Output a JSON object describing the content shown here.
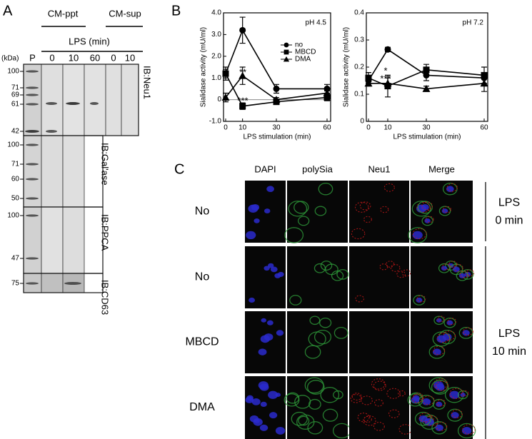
{
  "panel_labels": [
    "A",
    "B",
    "C"
  ],
  "blot": {
    "groups": [
      "CM-ppt",
      "CM-sup"
    ],
    "lps_label": "LPS (min)",
    "kda_label": "(kDa)",
    "lanes": [
      "P",
      "0",
      "10",
      "60",
      "0",
      "10"
    ],
    "sections": [
      {
        "label": "IB:Neu1",
        "markers": [
          100,
          71,
          69,
          61,
          42
        ]
      },
      {
        "label": "IB:Gal'ase",
        "markers": [
          100,
          71,
          60,
          50
        ]
      },
      {
        "label": "IB:PPCA",
        "markers": [
          100,
          47
        ]
      },
      {
        "label": "IB:CD63",
        "markers": [
          75
        ]
      }
    ]
  },
  "chart_data": [
    {
      "type": "line",
      "note": "pH 4.5",
      "x_label": "LPS stimulation (min)",
      "y_label": "Sialidase activity (mU/ml)",
      "x": [
        0,
        10,
        30,
        60
      ],
      "xlim": [
        0,
        60
      ],
      "xticks": [
        0,
        10,
        30,
        60
      ],
      "ylim": [
        -1,
        4
      ],
      "yticks": [
        {
          "value": -1,
          "label": "-1.0"
        },
        0,
        {
          "value": 1,
          "label": "1.0"
        },
        {
          "value": 2,
          "label": "2.0"
        },
        {
          "value": 3,
          "label": "3.0"
        },
        {
          "value": 4,
          "label": "4.0"
        }
      ],
      "zero_line": true,
      "legend": "upper right",
      "series": [
        {
          "name": "no",
          "color": "#000000",
          "marker": "circle",
          "values": [
            1.2,
            3.2,
            0.5,
            0.5
          ],
          "errors": [
            0.3,
            0.6,
            0.2,
            0.2
          ]
        },
        {
          "name": "MBCD",
          "color": "#000000",
          "marker": "square",
          "values": [
            1.2,
            -0.3,
            -0.1,
            0.1
          ],
          "errors": [
            0.2,
            0.15,
            0.1,
            0.15
          ]
        },
        {
          "name": "DMA",
          "color": "#000000",
          "marker": "triangle",
          "values": [
            0.1,
            1.1,
            0.0,
            0.3
          ],
          "errors": [
            0.2,
            0.4,
            0.1,
            0.1
          ]
        }
      ],
      "annotations": [
        "**",
        "***"
      ]
    },
    {
      "type": "line",
      "note": "pH 7.2",
      "x_label": "LPS stimulation (min)",
      "y_label": "Sialidase activity (mU/ml)",
      "x": [
        0,
        10,
        30,
        60
      ],
      "xlim": [
        0,
        60
      ],
      "xticks": [
        0,
        10,
        30,
        60
      ],
      "ylim": [
        0,
        0.4
      ],
      "yticks": [
        0,
        0.1,
        0.2,
        0.3,
        0.4
      ],
      "series": [
        {
          "color": "#000000",
          "marker": "circle",
          "values": [
            0.15,
            0.265,
            0.17,
            0.16
          ],
          "errors": [
            0.01,
            0.008,
            0.02,
            0.02
          ]
        },
        {
          "color": "#000000",
          "marker": "square",
          "values": [
            0.16,
            0.13,
            0.19,
            0.17
          ],
          "errors": [
            0.02,
            0.04,
            0.02,
            0.03
          ]
        },
        {
          "color": "#000000",
          "marker": "triangle",
          "values": [
            0.14,
            0.14,
            0.12,
            0.14
          ],
          "errors": [
            0.01,
            0.02,
            0.01,
            0.03
          ]
        }
      ],
      "annotations": [
        "*",
        "***"
      ]
    }
  ],
  "micro": {
    "columns": [
      {
        "label": "DAPI",
        "color": "#3355dd"
      },
      {
        "label": "polySia",
        "color": "#22aa44"
      },
      {
        "label": "Neu1",
        "color": "#dd2222"
      },
      {
        "label": "Merge",
        "color": "#000000"
      }
    ],
    "rows": [
      "No",
      "No",
      "MBCD",
      "DMA"
    ],
    "groups": [
      [
        "LPS",
        "0 min"
      ],
      [
        "LPS",
        "10 min"
      ]
    ]
  }
}
